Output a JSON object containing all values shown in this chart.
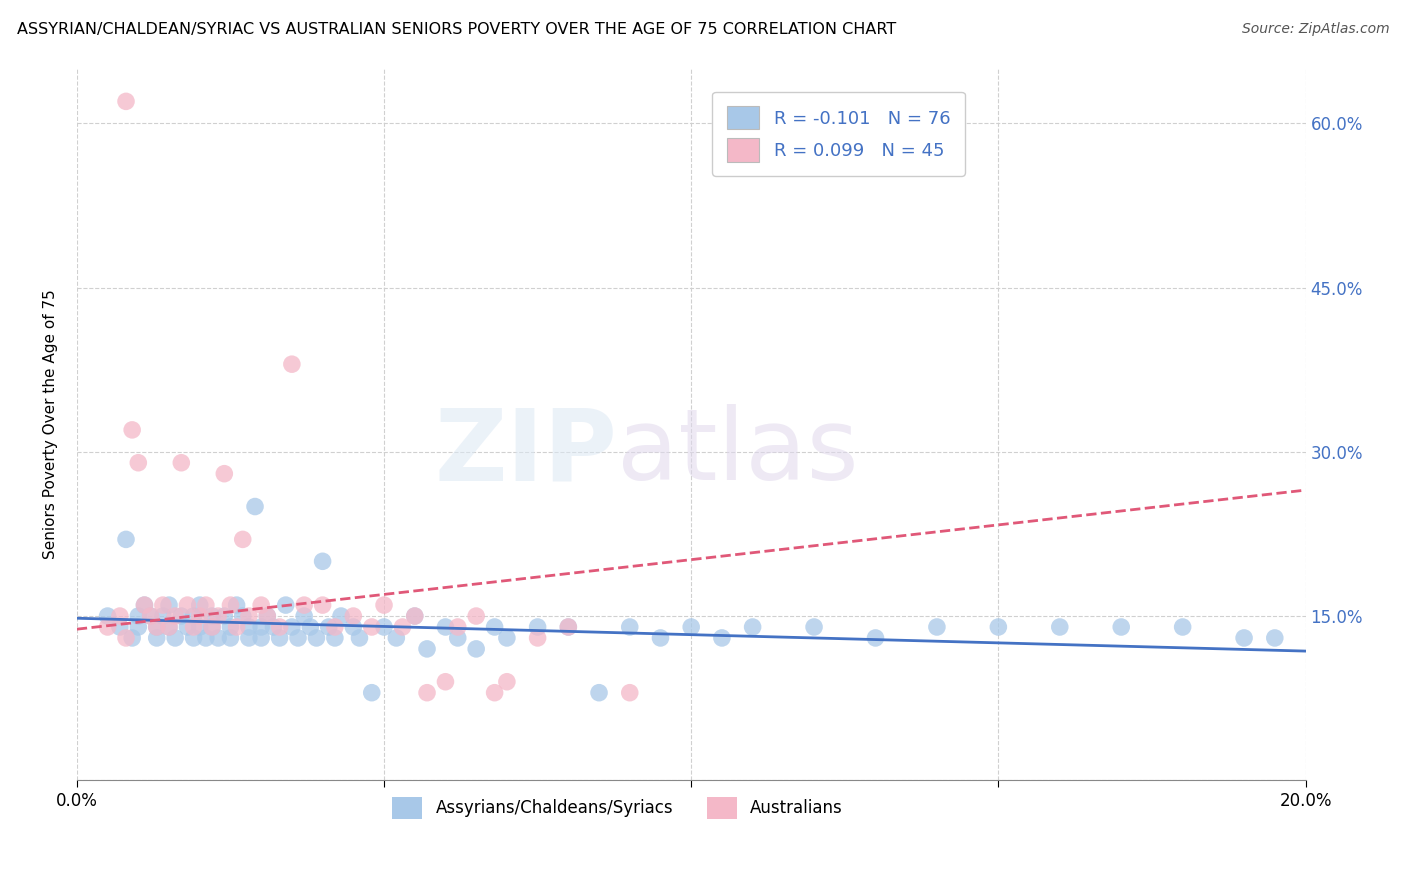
{
  "title": "ASSYRIAN/CHALDEAN/SYRIAC VS AUSTRALIAN SENIORS POVERTY OVER THE AGE OF 75 CORRELATION CHART",
  "source": "Source: ZipAtlas.com",
  "ylabel": "Seniors Poverty Over the Age of 75",
  "xlim": [
    0.0,
    0.2
  ],
  "ylim": [
    0.0,
    0.65
  ],
  "yticks": [
    0.0,
    0.15,
    0.3,
    0.45,
    0.6
  ],
  "ytick_labels": [
    "",
    "15.0%",
    "30.0%",
    "45.0%",
    "60.0%"
  ],
  "xticks": [
    0.0,
    0.05,
    0.1,
    0.15,
    0.2
  ],
  "xtick_labels": [
    "0.0%",
    "",
    "",
    "",
    "20.0%"
  ],
  "legend_label1": "Assyrians/Chaldeans/Syriacs",
  "legend_label2": "Australians",
  "color_blue": "#a8c8e8",
  "color_pink": "#f4b8c8",
  "line_blue": "#4472c4",
  "line_pink": "#e05878",
  "blue_r": "R = -0.101",
  "blue_n": "N = 76",
  "pink_r": "R = 0.099",
  "pink_n": "N = 45",
  "blue_scatter_x": [
    0.005,
    0.007,
    0.008,
    0.009,
    0.01,
    0.01,
    0.011,
    0.012,
    0.013,
    0.013,
    0.014,
    0.015,
    0.015,
    0.016,
    0.017,
    0.018,
    0.019,
    0.019,
    0.02,
    0.02,
    0.021,
    0.022,
    0.022,
    0.023,
    0.024,
    0.025,
    0.025,
    0.026,
    0.027,
    0.028,
    0.028,
    0.029,
    0.03,
    0.03,
    0.031,
    0.032,
    0.033,
    0.034,
    0.035,
    0.036,
    0.037,
    0.038,
    0.039,
    0.04,
    0.041,
    0.042,
    0.043,
    0.045,
    0.046,
    0.048,
    0.05,
    0.052,
    0.055,
    0.057,
    0.06,
    0.062,
    0.065,
    0.068,
    0.07,
    0.075,
    0.08,
    0.085,
    0.09,
    0.095,
    0.1,
    0.105,
    0.11,
    0.12,
    0.13,
    0.14,
    0.15,
    0.16,
    0.17,
    0.18,
    0.19,
    0.195
  ],
  "blue_scatter_y": [
    0.15,
    0.14,
    0.22,
    0.13,
    0.15,
    0.14,
    0.16,
    0.15,
    0.13,
    0.14,
    0.15,
    0.16,
    0.14,
    0.13,
    0.15,
    0.14,
    0.13,
    0.15,
    0.14,
    0.16,
    0.13,
    0.15,
    0.14,
    0.13,
    0.15,
    0.14,
    0.13,
    0.16,
    0.15,
    0.14,
    0.13,
    0.25,
    0.14,
    0.13,
    0.15,
    0.14,
    0.13,
    0.16,
    0.14,
    0.13,
    0.15,
    0.14,
    0.13,
    0.2,
    0.14,
    0.13,
    0.15,
    0.14,
    0.13,
    0.08,
    0.14,
    0.13,
    0.15,
    0.12,
    0.14,
    0.13,
    0.12,
    0.14,
    0.13,
    0.14,
    0.14,
    0.08,
    0.14,
    0.13,
    0.14,
    0.13,
    0.14,
    0.14,
    0.13,
    0.14,
    0.14,
    0.14,
    0.14,
    0.14,
    0.13,
    0.13
  ],
  "pink_scatter_x": [
    0.005,
    0.007,
    0.008,
    0.009,
    0.01,
    0.011,
    0.012,
    0.013,
    0.014,
    0.015,
    0.016,
    0.017,
    0.018,
    0.019,
    0.02,
    0.021,
    0.022,
    0.023,
    0.024,
    0.025,
    0.026,
    0.027,
    0.028,
    0.03,
    0.031,
    0.033,
    0.035,
    0.037,
    0.04,
    0.042,
    0.045,
    0.048,
    0.05,
    0.053,
    0.055,
    0.057,
    0.06,
    0.062,
    0.065,
    0.068,
    0.07,
    0.075,
    0.08,
    0.09,
    0.008
  ],
  "pink_scatter_y": [
    0.14,
    0.15,
    0.62,
    0.32,
    0.29,
    0.16,
    0.15,
    0.14,
    0.16,
    0.14,
    0.15,
    0.29,
    0.16,
    0.14,
    0.15,
    0.16,
    0.14,
    0.15,
    0.28,
    0.16,
    0.14,
    0.22,
    0.15,
    0.16,
    0.15,
    0.14,
    0.38,
    0.16,
    0.16,
    0.14,
    0.15,
    0.14,
    0.16,
    0.14,
    0.15,
    0.08,
    0.09,
    0.14,
    0.15,
    0.08,
    0.09,
    0.13,
    0.14,
    0.08,
    0.13
  ],
  "blue_line_x0": 0.0,
  "blue_line_y0": 0.148,
  "blue_line_x1": 0.2,
  "blue_line_y1": 0.118,
  "pink_line_x0": 0.0,
  "pink_line_y0": 0.138,
  "pink_line_x1": 0.2,
  "pink_line_y1": 0.265
}
